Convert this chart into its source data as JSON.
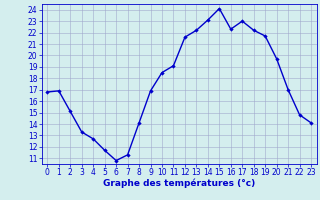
{
  "hours": [
    0,
    1,
    2,
    3,
    4,
    5,
    6,
    7,
    8,
    9,
    10,
    11,
    12,
    13,
    14,
    15,
    16,
    17,
    18,
    19,
    20,
    21,
    22,
    23
  ],
  "temps": [
    16.8,
    16.9,
    15.1,
    13.3,
    12.7,
    11.7,
    10.8,
    11.3,
    14.1,
    16.9,
    18.5,
    19.1,
    21.6,
    22.2,
    23.1,
    24.1,
    22.3,
    23.0,
    22.2,
    21.7,
    19.7,
    17.0,
    14.8,
    14.1
  ],
  "line_color": "#0000cc",
  "marker": "D",
  "marker_size": 2.2,
  "bg_color": "#d4eeee",
  "grid_color": "#a0a8cc",
  "xlabel": "Graphe des températures (°c)",
  "xlabel_color": "#0000cc",
  "tick_color": "#0000cc",
  "ylim_min": 10.5,
  "ylim_max": 24.5,
  "xlim_min": -0.5,
  "xlim_max": 23.5,
  "yticks": [
    11,
    12,
    13,
    14,
    15,
    16,
    17,
    18,
    19,
    20,
    21,
    22,
    23,
    24
  ],
  "xticks": [
    0,
    1,
    2,
    3,
    4,
    5,
    6,
    7,
    8,
    9,
    10,
    11,
    12,
    13,
    14,
    15,
    16,
    17,
    18,
    19,
    20,
    21,
    22,
    23
  ],
  "spine_color": "#0000cc",
  "fig_bg": "#d4eeee",
  "tick_fontsize": 5.5,
  "xlabel_fontsize": 6.5,
  "linewidth": 1.0
}
